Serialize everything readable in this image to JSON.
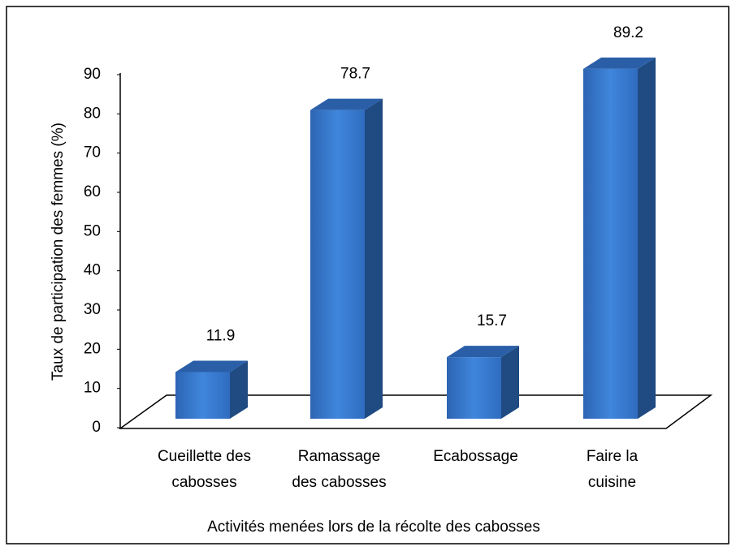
{
  "chart_data": {
    "type": "bar3d",
    "categories": [
      "Cueillette des\ncabosses",
      "Ramassage\ndes cabosses",
      "Ecabossage",
      "Faire la\ncuisine"
    ],
    "values": [
      11.9,
      78.7,
      15.7,
      89.2
    ],
    "color": "#3a7bd5",
    "ylim": [
      0,
      90
    ],
    "yticks": [
      0,
      10,
      20,
      30,
      40,
      50,
      60,
      70,
      80,
      90
    ],
    "y_label": "Taux de participation des femmes (%)",
    "x_label": "Activités menées lors de la récolte des cabosses"
  }
}
